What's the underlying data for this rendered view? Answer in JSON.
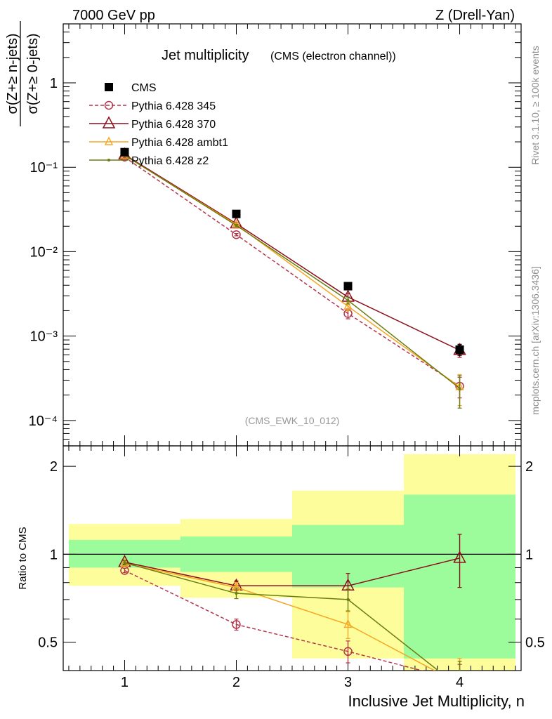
{
  "header": {
    "left": "7000 GeV pp",
    "right": "Z (Drell-Yan)"
  },
  "side_text": {
    "rivet": "Rivet 3.1.10, ≥ 100k events",
    "mcplots": "mcplots.cern.ch [arXiv:1306.3436]"
  },
  "colors": {
    "cms": "#000000",
    "p345": "#b4354a",
    "p370": "#8b0e1a",
    "ambt1": "#f5a623",
    "z2": "#6b7d10",
    "band_inner": "#9cfc9c",
    "band_outer": "#fdfd9c"
  },
  "chart_data": [
    {
      "type": "line",
      "title": "Jet multiplicity",
      "subtitle": "(CMS (electron channel))",
      "watermark": "(CMS_EWK_10_012)",
      "ylabel_num": "σ(Z+≥ n-jets)",
      "ylabel_den": "σ(Z+≥ 0-jets)",
      "yscale": "log",
      "xlim": [
        0.45,
        4.55
      ],
      "ylim": [
        5e-05,
        5
      ],
      "ytick_labels": [
        "10⁻⁴",
        "10⁻³",
        "10⁻²",
        "10⁻¹",
        "1"
      ],
      "legend_position": "top-left",
      "x": [
        1,
        2,
        3,
        4
      ],
      "series": [
        {
          "name": "CMS",
          "marker": "square",
          "values": [
            0.151,
            0.028,
            0.0039,
            0.00069
          ],
          "errors": [
            0.003,
            0.0008,
            0.00015,
            0.0001
          ]
        },
        {
          "name": "Pythia 6.428 345",
          "marker": "circle",
          "dashed": true,
          "values": [
            0.132,
            0.0159,
            0.00185,
            0.000255
          ],
          "errors": [
            0.002,
            0.0005,
            0.00025,
            7e-05
          ]
        },
        {
          "name": "Pythia 6.428 370",
          "marker": "triangle",
          "values": [
            0.141,
            0.0215,
            0.0029,
            0.00068
          ],
          "errors": [
            0.002,
            0.0005,
            0.0003,
            0.00012
          ]
        },
        {
          "name": "Pythia 6.428 ambt1",
          "marker": "small-triangle",
          "values": [
            0.138,
            0.021,
            0.00225,
            0.00025
          ],
          "errors": [
            0.002,
            0.0005,
            0.00025,
            0.0001
          ]
        },
        {
          "name": "Pythia 6.428 z2",
          "marker": "dot",
          "values": [
            0.139,
            0.0205,
            0.00265,
            0.00024
          ],
          "errors": [
            0.002,
            0.0005,
            0.00025,
            0.0001
          ]
        }
      ]
    },
    {
      "type": "line",
      "ylabel": "Ratio to CMS",
      "xlabel": "Inclusive Jet Multiplicity, n",
      "yscale": "log",
      "xlim": [
        0.45,
        4.55
      ],
      "ylim": [
        0.4,
        2.35
      ],
      "xtick_labels": [
        "1",
        "2",
        "3",
        "4"
      ],
      "ytick_labels": [
        "0.5",
        "1",
        "2"
      ],
      "reference_line": 1,
      "bands": [
        {
          "x_range": [
            0.5,
            1.5
          ],
          "inner": [
            0.9,
            1.12
          ],
          "outer": [
            0.78,
            1.27
          ]
        },
        {
          "x_range": [
            1.5,
            2.5
          ],
          "inner": [
            0.87,
            1.15
          ],
          "outer": [
            0.71,
            1.32
          ]
        },
        {
          "x_range": [
            2.5,
            3.5
          ],
          "inner": [
            0.77,
            1.26
          ],
          "outer": [
            0.44,
            1.65
          ]
        },
        {
          "x_range": [
            3.5,
            4.5
          ],
          "inner": [
            0.44,
            1.6
          ],
          "outer": [
            0.33,
            2.2
          ]
        }
      ],
      "x": [
        1,
        2,
        3,
        4
      ],
      "series": [
        {
          "name": "Pythia 6.428 345",
          "marker": "circle",
          "dashed": true,
          "values": [
            0.88,
            0.575,
            0.465,
            0.37
          ],
          "errors": [
            0.015,
            0.025,
            0.04,
            0.05
          ]
        },
        {
          "name": "Pythia 6.428 370",
          "marker": "triangle",
          "values": [
            0.94,
            0.78,
            0.78,
            0.97
          ],
          "errors": [
            0.015,
            0.03,
            0.08,
            0.2
          ]
        },
        {
          "name": "Pythia 6.428 ambt1",
          "marker": "small-triangle",
          "values": [
            0.93,
            0.77,
            0.575,
            0.36
          ],
          "errors": [
            0.015,
            0.03,
            0.06,
            0.08
          ]
        },
        {
          "name": "Pythia 6.428 z2",
          "marker": "dot",
          "values": [
            0.935,
            0.735,
            0.7,
            0.35
          ],
          "errors": [
            0.015,
            0.03,
            0.06,
            0.08
          ]
        }
      ]
    }
  ]
}
